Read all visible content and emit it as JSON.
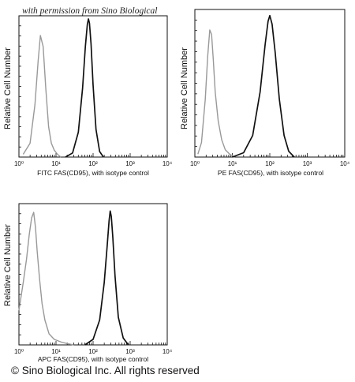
{
  "watermark": "with permission from Sino Biological",
  "copyright": "© Sino Biological Inc. All rights reserved",
  "chart_data": [
    {
      "type": "line",
      "xscale": "log",
      "xlim": [
        1,
        10000
      ],
      "ylim": [
        0,
        1
      ],
      "xticks": [
        "10⁰",
        "10¹",
        "10²",
        "10³",
        "10⁴"
      ],
      "xlabel": "FITC  FAS(CD95),  with isotype control",
      "ylabel": "Relative Cell Number",
      "series": [
        {
          "color": "#999999",
          "x": [
            1.3,
            2.0,
            2.7,
            3.3,
            3.8,
            4.5,
            5.3,
            6.3,
            7.5,
            9.0,
            11.0,
            13.5
          ],
          "y": [
            0.02,
            0.1,
            0.38,
            0.7,
            0.88,
            0.8,
            0.5,
            0.22,
            0.1,
            0.05,
            0.02,
            0.0
          ]
        },
        {
          "color": "#111111",
          "x": [
            18,
            28,
            40,
            52,
            62,
            70,
            75,
            80,
            88,
            100,
            120,
            150,
            190
          ],
          "y": [
            0.0,
            0.03,
            0.18,
            0.5,
            0.8,
            0.96,
            1.0,
            0.97,
            0.82,
            0.52,
            0.2,
            0.04,
            0.0
          ]
        }
      ]
    },
    {
      "type": "line",
      "xscale": "log",
      "xlim": [
        1,
        10000
      ],
      "ylim": [
        0,
        1
      ],
      "xticks": [
        "10⁰",
        "10¹",
        "10²",
        "10³",
        "10⁴"
      ],
      "xlabel": "PE  FAS(CD95),  with isotype control",
      "ylabel": "Relative Cell Number",
      "series": [
        {
          "color": "#999999",
          "x": [
            1.2,
            1.5,
            1.9,
            2.2,
            2.5,
            2.8,
            3.1,
            3.5,
            4.2,
            5.2,
            6.5,
            8.5,
            11.5
          ],
          "y": [
            0.02,
            0.1,
            0.4,
            0.7,
            0.88,
            0.85,
            0.68,
            0.45,
            0.25,
            0.12,
            0.05,
            0.02,
            0.0
          ]
        },
        {
          "color": "#111111",
          "x": [
            10,
            20,
            35,
            55,
            75,
            90,
            100,
            115,
            140,
            180,
            240,
            320,
            450
          ],
          "y": [
            0.0,
            0.03,
            0.15,
            0.45,
            0.78,
            0.94,
            0.98,
            0.92,
            0.72,
            0.4,
            0.15,
            0.04,
            0.0
          ]
        }
      ]
    },
    {
      "type": "line",
      "xscale": "log",
      "xlim": [
        1,
        10000
      ],
      "ylim": [
        0,
        1
      ],
      "xticks": [
        "10⁰",
        "10¹",
        "10²",
        "10³",
        "10⁴"
      ],
      "xlabel": "APC  FAS(CD95),  with isotype control",
      "ylabel": "Relative Cell Number",
      "series": [
        {
          "color": "#999999",
          "x": [
            1.0,
            1.3,
            1.6,
            1.9,
            2.2,
            2.5,
            2.8,
            3.1,
            3.6,
            4.2,
            5.0,
            6.5,
            9.0,
            14,
            20,
            30
          ],
          "y": [
            0.25,
            0.45,
            0.62,
            0.8,
            0.92,
            0.96,
            0.85,
            0.68,
            0.48,
            0.3,
            0.18,
            0.08,
            0.04,
            0.02,
            0.01,
            0.0
          ]
        },
        {
          "color": "#111111",
          "x": [
            60,
            100,
            150,
            200,
            240,
            270,
            290,
            310,
            340,
            390,
            480,
            650,
            900
          ],
          "y": [
            0.0,
            0.04,
            0.18,
            0.45,
            0.72,
            0.9,
            0.97,
            0.93,
            0.78,
            0.5,
            0.2,
            0.05,
            0.0
          ]
        }
      ]
    }
  ]
}
